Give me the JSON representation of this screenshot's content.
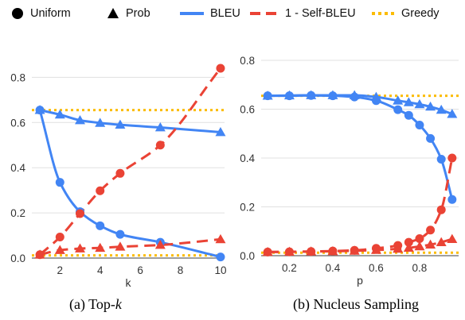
{
  "legend": {
    "uniform": "Uniform",
    "prob": "Prob",
    "bleu": "BLEU",
    "selfbleu": "1 - Self-BLEU",
    "greedy": "Greedy"
  },
  "colors": {
    "bleu": "#4285f4",
    "selfbleu": "#ea4335",
    "greedy": "#fbbc04",
    "grid": "#e0e0e0",
    "axis": "#666666"
  },
  "captions": {
    "left_prefix": "(a) Top-",
    "left_var": "k",
    "right": "(b) Nucleus Sampling"
  },
  "chart_data": [
    {
      "type": "line",
      "xlabel": "k",
      "ylabel": "",
      "xlim": [
        0.6,
        10.2
      ],
      "ylim": [
        0,
        0.84
      ],
      "xticks": [
        2,
        4,
        6,
        8,
        10
      ],
      "yticks": [
        0,
        0.2,
        0.4,
        0.6,
        0.8
      ],
      "ytick_labels": [
        "0.0",
        "0.2",
        "0.4",
        "0.6",
        "0.8"
      ],
      "greedy": 0.655,
      "series": [
        {
          "metric": "BLEU",
          "decoding": "Uniform",
          "marker": "circle",
          "style": "solid",
          "x": [
            1,
            2,
            3,
            4,
            5,
            7,
            10
          ],
          "y": [
            0.655,
            0.335,
            0.205,
            0.143,
            0.105,
            0.07,
            0.005
          ]
        },
        {
          "metric": "BLEU",
          "decoding": "Prob",
          "marker": "triangle",
          "style": "solid",
          "x": [
            1,
            2,
            3,
            4,
            5,
            7,
            10
          ],
          "y": [
            0.655,
            0.635,
            0.61,
            0.598,
            0.59,
            0.578,
            0.557
          ]
        },
        {
          "metric": "1 - Self-BLEU",
          "decoding": "Uniform",
          "marker": "circle",
          "style": "dashed",
          "x": [
            1,
            2,
            3,
            4,
            5,
            7,
            10
          ],
          "y": [
            0.015,
            0.093,
            0.197,
            0.298,
            0.375,
            0.5,
            0.84
          ]
        },
        {
          "metric": "1 - Self-BLEU",
          "decoding": "Prob",
          "marker": "triangle",
          "style": "dashed",
          "x": [
            1,
            2,
            3,
            4,
            5,
            7,
            10
          ],
          "y": [
            0.015,
            0.035,
            0.042,
            0.045,
            0.05,
            0.058,
            0.083
          ]
        }
      ]
    },
    {
      "type": "line",
      "xlabel": "p",
      "ylabel": "",
      "xlim": [
        0.07,
        0.98
      ],
      "ylim": [
        0,
        0.8
      ],
      "xticks": [
        0.2,
        0.4,
        0.6,
        0.8
      ],
      "yticks": [
        0,
        0.2,
        0.4,
        0.6,
        0.8
      ],
      "ytick_labels": [
        "0.0",
        "0.2",
        "0.4",
        "0.6",
        "0.8"
      ],
      "greedy": 0.655,
      "series": [
        {
          "metric": "BLEU",
          "decoding": "Uniform",
          "marker": "circle",
          "style": "solid",
          "x": [
            0.1,
            0.2,
            0.3,
            0.4,
            0.5,
            0.6,
            0.7,
            0.75,
            0.8,
            0.85,
            0.9,
            0.95
          ],
          "y": [
            0.655,
            0.655,
            0.656,
            0.655,
            0.65,
            0.635,
            0.598,
            0.575,
            0.535,
            0.48,
            0.395,
            0.23
          ]
        },
        {
          "metric": "BLEU",
          "decoding": "Prob",
          "marker": "triangle",
          "style": "solid",
          "x": [
            0.1,
            0.2,
            0.3,
            0.4,
            0.5,
            0.6,
            0.7,
            0.75,
            0.8,
            0.85,
            0.9,
            0.95
          ],
          "y": [
            0.655,
            0.656,
            0.657,
            0.657,
            0.657,
            0.65,
            0.635,
            0.628,
            0.62,
            0.61,
            0.597,
            0.58
          ]
        },
        {
          "metric": "1 - Self-BLEU",
          "decoding": "Uniform",
          "marker": "circle",
          "style": "dashed",
          "x": [
            0.1,
            0.2,
            0.3,
            0.4,
            0.5,
            0.6,
            0.7,
            0.75,
            0.8,
            0.85,
            0.9,
            0.95
          ],
          "y": [
            0.015,
            0.016,
            0.017,
            0.019,
            0.022,
            0.03,
            0.042,
            0.055,
            0.07,
            0.105,
            0.188,
            0.4
          ]
        },
        {
          "metric": "1 - Self-BLEU",
          "decoding": "Prob",
          "marker": "triangle",
          "style": "dashed",
          "x": [
            0.1,
            0.2,
            0.3,
            0.4,
            0.5,
            0.6,
            0.7,
            0.75,
            0.8,
            0.85,
            0.9,
            0.95
          ],
          "y": [
            0.015,
            0.016,
            0.017,
            0.018,
            0.02,
            0.023,
            0.028,
            0.032,
            0.038,
            0.045,
            0.055,
            0.068
          ]
        }
      ]
    }
  ]
}
